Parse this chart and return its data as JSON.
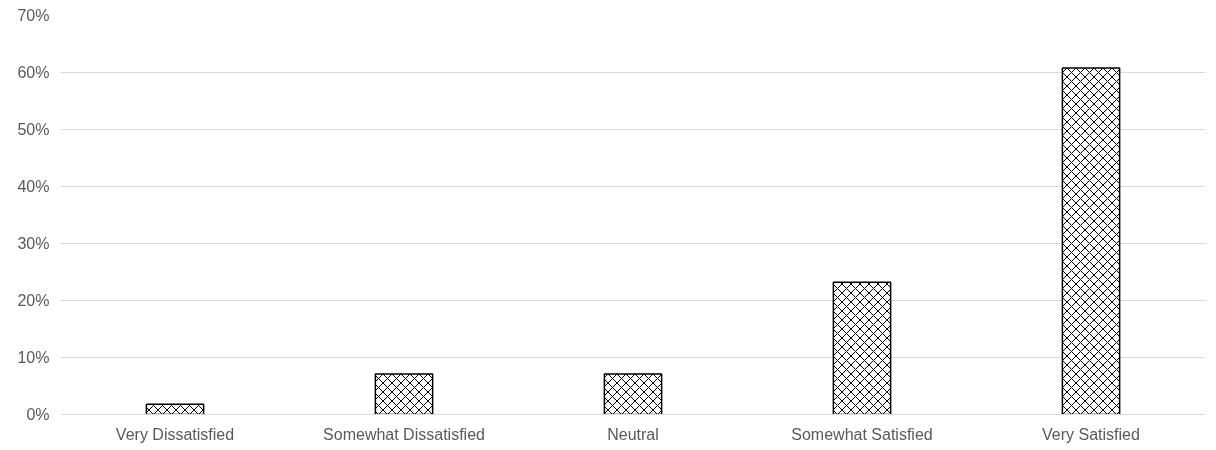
{
  "chart_data": {
    "type": "bar",
    "categories": [
      "Very Dissatisfied",
      "Somewhat Dissatisfied",
      "Neutral",
      "Somewhat Satisfied",
      "Very Satisfied"
    ],
    "values": [
      1.8,
      7.1,
      7.1,
      23.2,
      60.8
    ],
    "color": "#ffffff",
    "ylim": [
      0,
      70
    ],
    "yticks": [
      {
        "value": 0,
        "label": "0%"
      },
      {
        "value": 10,
        "label": "10%"
      },
      {
        "value": 20,
        "label": "20%"
      },
      {
        "value": 30,
        "label": "30%"
      },
      {
        "value": 40,
        "label": "40%"
      },
      {
        "value": 50,
        "label": "50%"
      },
      {
        "value": 60,
        "label": "60%"
      },
      {
        "value": 70,
        "label": "70%"
      }
    ],
    "grid": "y"
  }
}
